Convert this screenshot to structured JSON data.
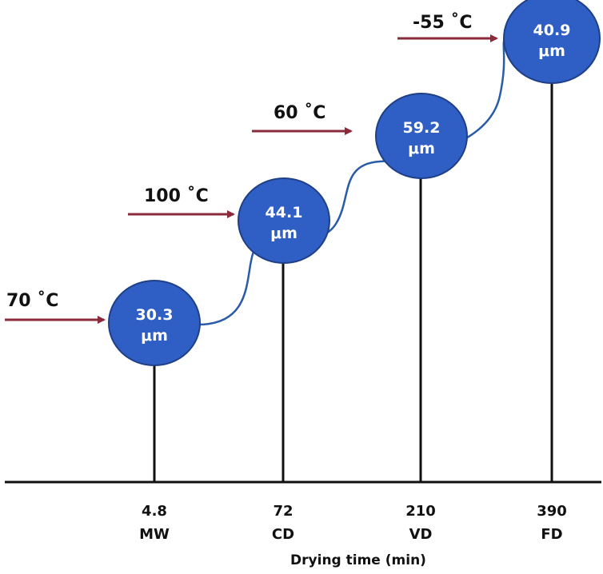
{
  "colors": {
    "bubble_fill": "#2f5fc4",
    "bubble_stroke": "#1f3f86",
    "arrow": "#8b2a3a",
    "curve": "#2a5ba8",
    "stem": "#111111",
    "axis": "#111111"
  },
  "stages": [
    {
      "temperature": "70 ˚C",
      "size_value": "30.3",
      "size_unit": "μm",
      "time": "4.8",
      "method": "MW"
    },
    {
      "temperature": "100 ˚C",
      "size_value": "44.1",
      "size_unit": "μm",
      "time": "72",
      "method": "CD"
    },
    {
      "temperature": "60 ˚C",
      "size_value": "59.2",
      "size_unit": "μm",
      "time": "210",
      "method": "VD"
    },
    {
      "temperature": "-55 ˚C",
      "size_value": "40.9",
      "size_unit": "μm",
      "time": "390",
      "method": "FD"
    }
  ],
  "x_axis": {
    "title": "Drying time (min)"
  }
}
